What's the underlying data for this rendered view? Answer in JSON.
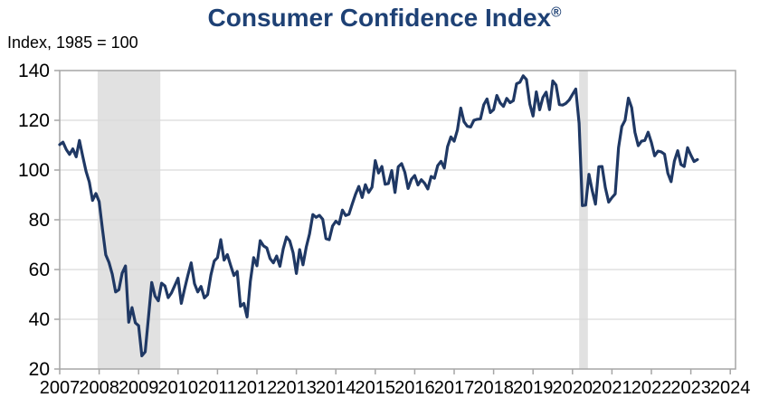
{
  "title": {
    "text": "Consumer Confidence Index",
    "mark": "®"
  },
  "subtitle": "Index, 1985 = 100",
  "chart_data": {
    "type": "line",
    "title": "Consumer Confidence Index®",
    "subtitle": "Index, 1985 = 100",
    "xlabel": "",
    "ylabel": "",
    "frequency": "monthly",
    "start_year": 2007,
    "start_month": 1,
    "x_ticks": [
      2007,
      2008,
      2009,
      2010,
      2011,
      2012,
      2013,
      2014,
      2015,
      2016,
      2017,
      2018,
      2019,
      2020,
      2021,
      2022,
      2023,
      2024
    ],
    "y_ticks": [
      20,
      40,
      60,
      80,
      100,
      120,
      140
    ],
    "ylim": [
      20,
      140
    ],
    "xlim": [
      2007,
      2024.13
    ],
    "grid": true,
    "legend": false,
    "recession_bands": [
      {
        "from": 2007.96,
        "to": 2009.55
      },
      {
        "from": 2020.17,
        "to": 2020.39
      }
    ],
    "series": [
      {
        "name": "Consumer Confidence Index",
        "values": [
          110.2,
          111.2,
          108.2,
          106.3,
          108.5,
          105.3,
          111.9,
          105.6,
          99.5,
          95.2,
          87.8,
          90.6,
          87.3,
          76.4,
          65.9,
          62.8,
          58.1,
          51.0,
          51.9,
          58.5,
          61.4,
          38.8,
          44.7,
          38.6,
          37.4,
          25.3,
          26.9,
          40.8,
          54.8,
          49.3,
          47.4,
          54.5,
          53.4,
          48.7,
          50.6,
          53.6,
          56.5,
          46.4,
          52.3,
          57.7,
          62.7,
          54.3,
          51.0,
          53.2,
          48.6,
          49.9,
          57.8,
          63.4,
          64.8,
          72.0,
          63.8,
          66.0,
          61.7,
          57.6,
          59.2,
          45.2,
          46.4,
          40.9,
          55.2,
          64.8,
          61.5,
          71.6,
          69.5,
          68.7,
          64.4,
          62.7,
          65.4,
          61.3,
          68.4,
          73.1,
          71.5,
          66.7,
          58.4,
          68.0,
          61.9,
          69.0,
          74.3,
          82.1,
          81.0,
          81.8,
          80.2,
          72.4,
          72.0,
          77.5,
          79.4,
          78.3,
          83.9,
          81.7,
          82.2,
          86.4,
          90.3,
          93.4,
          89.0,
          94.1,
          91.0,
          93.1,
          103.8,
          98.8,
          101.4,
          94.3,
          94.6,
          99.8,
          91.0,
          101.3,
          102.6,
          99.1,
          92.6,
          96.3,
          97.8,
          94.0,
          96.1,
          94.7,
          92.4,
          97.4,
          96.7,
          101.8,
          103.5,
          100.8,
          109.4,
          113.3,
          111.6,
          116.1,
          124.9,
          119.4,
          117.6,
          117.3,
          120.0,
          120.4,
          120.6,
          126.2,
          128.6,
          123.1,
          124.3,
          130.0,
          127.0,
          125.6,
          128.8,
          127.1,
          127.9,
          134.7,
          135.3,
          137.9,
          136.4,
          126.6,
          121.7,
          131.4,
          124.2,
          129.2,
          131.3,
          124.3,
          135.8,
          134.2,
          126.3,
          126.1,
          126.8,
          128.2,
          130.4,
          132.6,
          118.8,
          85.7,
          85.9,
          98.3,
          91.7,
          86.3,
          101.3,
          101.4,
          92.9,
          87.1,
          88.9,
          90.4,
          109.0,
          117.5,
          120.0,
          128.9,
          125.1,
          115.2,
          109.8,
          111.6,
          111.9,
          115.2,
          111.1,
          105.7,
          107.6,
          107.3,
          106.4,
          98.7,
          95.3,
          103.6,
          107.8,
          102.2,
          101.4,
          109.0,
          106.0,
          103.4,
          104.2
        ]
      }
    ],
    "colors": {
      "line": "#1f3864",
      "title": "#1e4175",
      "recession_band": "#e1e1e1",
      "gridline": "#d9d9d9",
      "border": "#a6a6a6",
      "tick_text": "#000000"
    }
  }
}
